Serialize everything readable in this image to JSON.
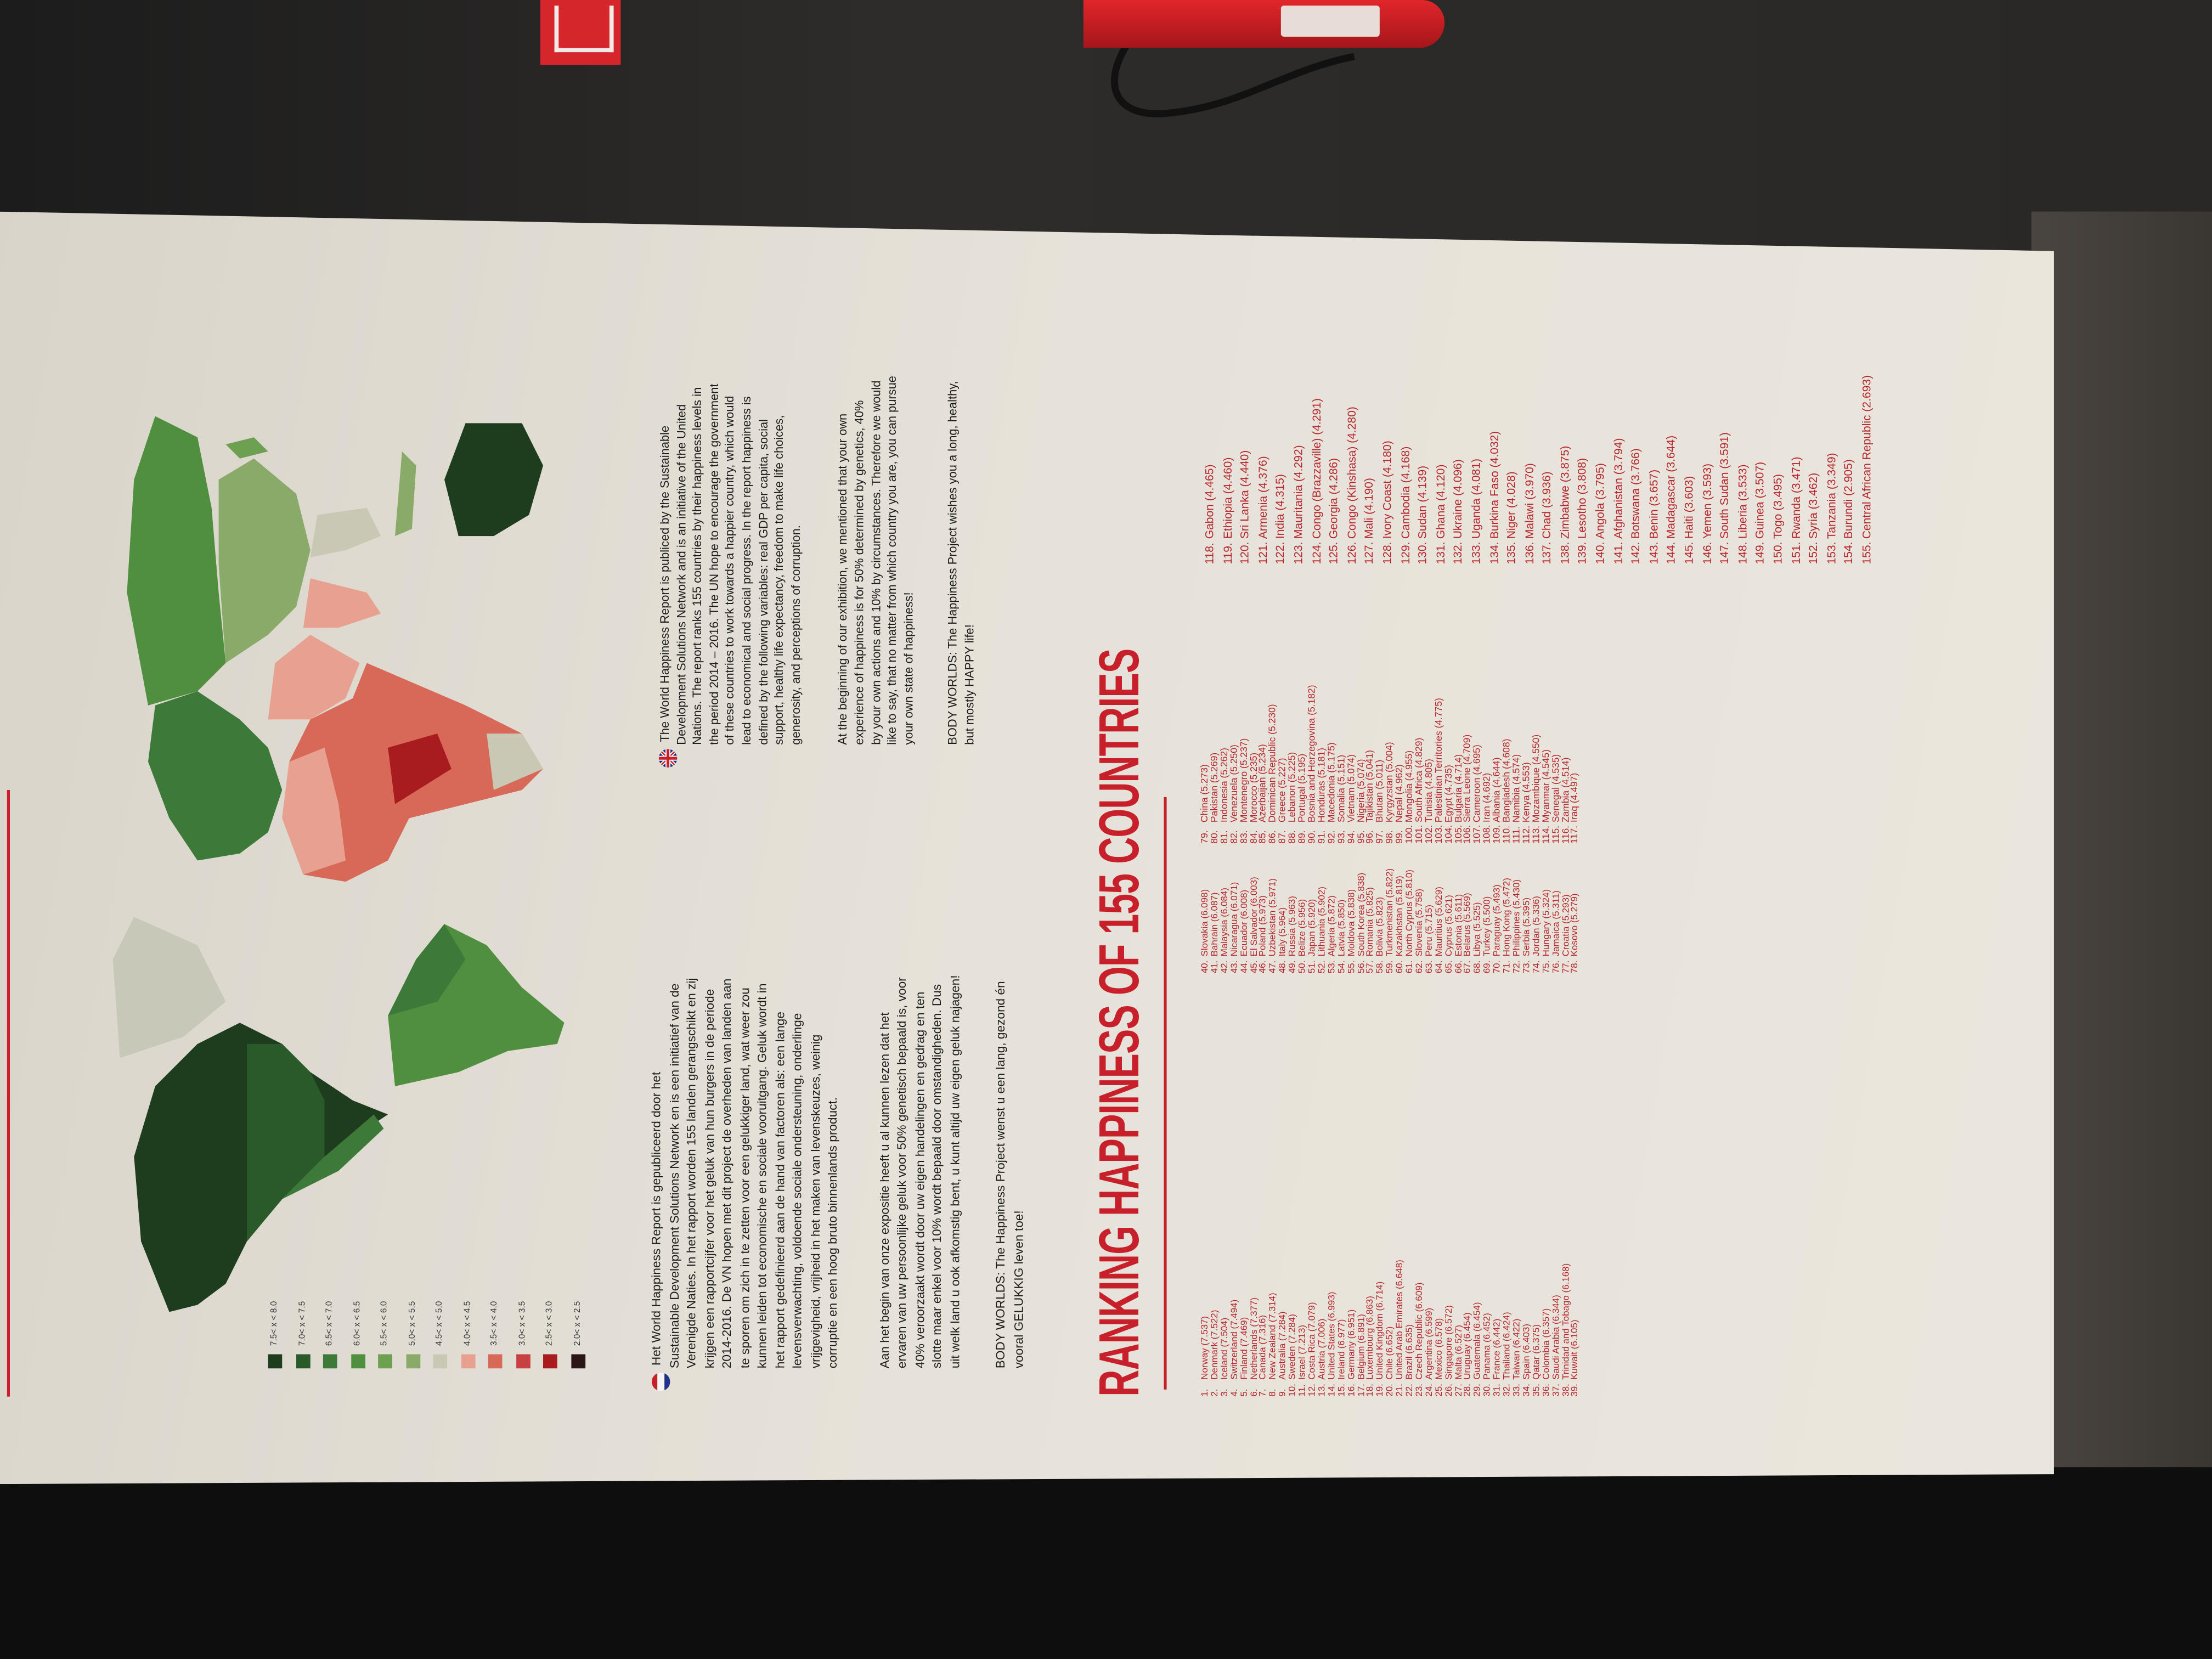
{
  "poster": {
    "title": "RANKING HAPPINESS OF 155 COUNTRIES",
    "accent_color": "#c8202a",
    "legend": [
      {
        "label": "7.5< x < 8.0",
        "color": "#1e3d1e"
      },
      {
        "label": "7.0< x < 7.5",
        "color": "#2a5a2a"
      },
      {
        "label": "6.5< x < 7.0",
        "color": "#3d7a3a"
      },
      {
        "label": "6.0< x < 6.5",
        "color": "#4f8f3f"
      },
      {
        "label": "5.5< x < 6.0",
        "color": "#6da050"
      },
      {
        "label": "5.0< x < 5.5",
        "color": "#8aaa6a"
      },
      {
        "label": "4.5< x < 5.0",
        "color": "#c8c8b4"
      },
      {
        "label": "4.0< x < 4.5",
        "color": "#e8a090"
      },
      {
        "label": "3.5< x < 4.0",
        "color": "#d86858"
      },
      {
        "label": "3.0< x < 3.5",
        "color": "#c84040"
      },
      {
        "label": "2.5< x < 3.0",
        "color": "#a81c20"
      },
      {
        "label": "2.0< x < 2.5",
        "color": "#2a1616"
      }
    ],
    "dutch": {
      "flag_icon": "netherlands-flag-icon",
      "paragraphs": [
        [
          "Het World Happiness Report is gepubliceerd door het",
          "Sustainable Development Solutions Network en is een initiatief van de",
          "Verenigde Naties. In het rapport worden 155 landen gerangschikt en zij",
          "krijgen een rapportcijfer voor het geluk van hun burgers in de periode",
          "2014-2016.  De VN hopen met dit project de overheden van landen aan",
          "te sporen om zich in te zetten voor een gelukkiger land, wat weer zou",
          "kunnen leiden tot economische en sociale vooruitgang. Geluk wordt in",
          "het rapport gedefinieerd aan de hand van factoren als: een lange",
          "levensverwachting, voldoende sociale ondersteuning, onderlinge",
          "vrijgevigheid, vrijheid in het maken van levenskeuzes, weinig",
          "corruptie en een hoog bruto binnenlands product."
        ],
        [
          "Aan het begin van onze expositie heeft u al kunnen lezen dat het",
          "ervaren van uw persoonlijke geluk voor 50% genetisch bepaald is, voor",
          "40% veroorzaakt wordt door uw eigen handelingen en gedrag en ten",
          "slotte maar enkel voor 10% wordt bepaald door omstandigheden. Dus",
          "uit welk land u ook afkomstig bent, u kunt altijd uw eigen geluk najagen!"
        ],
        [
          "BODY WORLDS: The Happiness Project wenst u een lang, gezond én",
          "vooral GELUKKIG leven toe!"
        ]
      ]
    },
    "english": {
      "flag_icon": "united-kingdom-flag-icon",
      "paragraphs": [
        [
          "The World Happiness Report is publiced by the Sustainable",
          "Development Solutions Network and is an initiative of the United",
          "Nations. The report ranks 155 countries by their happiness levels in",
          "the period 2014 – 2016. The UN hope to encourage the government",
          "of these countries to work towards a happier country, which would",
          "lead to economical and social progress. In the report happiness is",
          "defined by the following variables: real GDP per capita, social",
          "support, healthy life expectancy, freedom to make life choices,",
          "generosity, and perceptions of corruption."
        ],
        [
          "At the beginning of our exhibition, we mentioned that your own",
          "experience of happiness is for 50% determined by genetics,  40%",
          "by your own actions and 10% by circumstances. Therefore we would",
          "like to say, that no matter from which country you are, you can pursue",
          "your own state of happiness!"
        ],
        [
          "BODY WORLDS: The Happiness Project wishes you a long, healthy,",
          "but mostly HAPPY life!"
        ]
      ]
    },
    "ranking_columns": [
      [
        {
          "rank": "1.",
          "entry": "Norway (7.537)"
        },
        {
          "rank": "2.",
          "entry": "Denmark (7.522)"
        },
        {
          "rank": "3.",
          "entry": "Iceland (7.504)"
        },
        {
          "rank": "4.",
          "entry": "Switzerland (7.494)"
        },
        {
          "rank": "5.",
          "entry": "Finland (7.469)"
        },
        {
          "rank": "6.",
          "entry": "Netherlands (7.377)"
        },
        {
          "rank": "7.",
          "entry": "Canada (7.316)"
        },
        {
          "rank": "8.",
          "entry": "New Zealand (7.314)"
        },
        {
          "rank": "9.",
          "entry": "Australia (7.284)"
        },
        {
          "rank": "10.",
          "entry": "Sweden (7.284)"
        },
        {
          "rank": "11.",
          "entry": "Israel (7.213)"
        },
        {
          "rank": "12.",
          "entry": "Costa Rica (7.079)"
        },
        {
          "rank": "13.",
          "entry": "Austria (7.006)"
        },
        {
          "rank": "14.",
          "entry": "United States (6.993)"
        },
        {
          "rank": "15.",
          "entry": "Ireland (6.977)"
        },
        {
          "rank": "16.",
          "entry": "Germany (6.951)"
        },
        {
          "rank": "17.",
          "entry": "Belgium (6.891)"
        },
        {
          "rank": "18.",
          "entry": "Luxembourg (6.863)"
        },
        {
          "rank": "19.",
          "entry": "United Kingdom (6.714)"
        },
        {
          "rank": "20.",
          "entry": "Chile (6.652)"
        },
        {
          "rank": "21.",
          "entry": "United Arab Emirates (6.648)"
        },
        {
          "rank": "22.",
          "entry": "Brazil (6.635)"
        },
        {
          "rank": "23.",
          "entry": "Czech Republic (6.609)"
        },
        {
          "rank": "24.",
          "entry": "Argentina (6.599)"
        },
        {
          "rank": "25.",
          "entry": "Mexico (6.578)"
        },
        {
          "rank": "26.",
          "entry": "Singapore (6.572)"
        },
        {
          "rank": "27.",
          "entry": "Malta (6.527)"
        },
        {
          "rank": "28.",
          "entry": "Uruguay (6.454)"
        },
        {
          "rank": "29.",
          "entry": "Guatemala (6.454)"
        },
        {
          "rank": "30.",
          "entry": "Panama (6.452)"
        },
        {
          "rank": "31.",
          "entry": "France (6.442)"
        },
        {
          "rank": "32.",
          "entry": "Thailand (6.424)"
        },
        {
          "rank": "33.",
          "entry": "Taiwan (6.422)"
        },
        {
          "rank": "34.",
          "entry": "Spain (6.403)"
        },
        {
          "rank": "35.",
          "entry": "Qatar (6.375)"
        },
        {
          "rank": "36.",
          "entry": "Colombia (6.357)"
        },
        {
          "rank": "37.",
          "entry": "Saudi Arabia (6.344)"
        },
        {
          "rank": "38.",
          "entry": "Trinidad and Tobago (6.168)"
        },
        {
          "rank": "39.",
          "entry": "Kuwait (6.105)"
        }
      ],
      [
        {
          "rank": "40.",
          "entry": "Slovakia (6.098)"
        },
        {
          "rank": "41.",
          "entry": "Bahrain (6.087)"
        },
        {
          "rank": "42.",
          "entry": "Malaysia (6.084)"
        },
        {
          "rank": "43.",
          "entry": "Nicaragua (6.071)"
        },
        {
          "rank": "44.",
          "entry": "Ecuador (6.008)"
        },
        {
          "rank": "45.",
          "entry": "El Salvador (6.003)"
        },
        {
          "rank": "46.",
          "entry": "Poland (5.973)"
        },
        {
          "rank": "47.",
          "entry": "Uzbekistan (5.971)"
        },
        {
          "rank": "48.",
          "entry": "Italy (5.964)"
        },
        {
          "rank": "49.",
          "entry": "Russia (5.963)"
        },
        {
          "rank": "50.",
          "entry": "Belize (5.956)"
        },
        {
          "rank": "51.",
          "entry": "Japan (5.920)"
        },
        {
          "rank": "52.",
          "entry": "Lithuania (5.902)"
        },
        {
          "rank": "53.",
          "entry": "Algeria (5.872)"
        },
        {
          "rank": "54.",
          "entry": "Latvia (5.850)"
        },
        {
          "rank": "55.",
          "entry": "Moldova (5.838)"
        },
        {
          "rank": "56.",
          "entry": "South Korea (5.838)"
        },
        {
          "rank": "57.",
          "entry": "Romania (5.825)"
        },
        {
          "rank": "58.",
          "entry": "Bolivia (5.823)"
        },
        {
          "rank": "59.",
          "entry": "Turkmenistan (5.822)"
        },
        {
          "rank": "60.",
          "entry": "Kazakhstan (5.819)"
        },
        {
          "rank": "61.",
          "entry": "North Cyprus (5.810)"
        },
        {
          "rank": "62.",
          "entry": "Slovenia (5.758)"
        },
        {
          "rank": "63.",
          "entry": "Peru (5.715)"
        },
        {
          "rank": "64.",
          "entry": "Mauritius (5.629)"
        },
        {
          "rank": "65.",
          "entry": "Cyprus (5.621)"
        },
        {
          "rank": "66.",
          "entry": "Estonia (5.611)"
        },
        {
          "rank": "67.",
          "entry": "Belarus (5.569)"
        },
        {
          "rank": "68.",
          "entry": "Libya (5.525)"
        },
        {
          "rank": "69.",
          "entry": "Turkey (5.500)"
        },
        {
          "rank": "70.",
          "entry": "Paraguay (5.493)"
        },
        {
          "rank": "71.",
          "entry": "Hong Kong (5.472)"
        },
        {
          "rank": "72.",
          "entry": "Philippines (5.430)"
        },
        {
          "rank": "73.",
          "entry": "Serbia (5.395)"
        },
        {
          "rank": "74.",
          "entry": "Jordan (5.336)"
        },
        {
          "rank": "75.",
          "entry": "Hungary (5.324)"
        },
        {
          "rank": "76.",
          "entry": "Jamaica (5.311)"
        },
        {
          "rank": "77.",
          "entry": "Croatia (5.293)"
        },
        {
          "rank": "78.",
          "entry": "Kosovo (5.279)"
        }
      ],
      [
        {
          "rank": "79.",
          "entry": "China (5.273)"
        },
        {
          "rank": "80.",
          "entry": "Pakistan (5.269)"
        },
        {
          "rank": "81.",
          "entry": "Indonesia (5.262)"
        },
        {
          "rank": "82.",
          "entry": "Venezuela (5.250)"
        },
        {
          "rank": "83.",
          "entry": "Montenegro (5.237)"
        },
        {
          "rank": "84.",
          "entry": "Morocco (5.235)"
        },
        {
          "rank": "85.",
          "entry": "Azerbaijan (5.234)"
        },
        {
          "rank": "86.",
          "entry": "Dominican Republic (5.230)"
        },
        {
          "rank": "87.",
          "entry": "Greece (5.227)"
        },
        {
          "rank": "88.",
          "entry": "Lebanon (5.225)"
        },
        {
          "rank": "89.",
          "entry": "Portugal (5.195)"
        },
        {
          "rank": "90.",
          "entry": "Bosnia and Herzegovina (5.182)"
        },
        {
          "rank": "91.",
          "entry": "Honduras (5.181)"
        },
        {
          "rank": "92.",
          "entry": "Macedonia (5.175)"
        },
        {
          "rank": "93.",
          "entry": "Somalia (5.151)"
        },
        {
          "rank": "94.",
          "entry": "Vietnam (5.074)"
        },
        {
          "rank": "95.",
          "entry": "Nigeria (5.074)"
        },
        {
          "rank": "96.",
          "entry": "Tajikistan (5.041)"
        },
        {
          "rank": "97.",
          "entry": "Bhutan (5.011)"
        },
        {
          "rank": "98.",
          "entry": "Kyrgyzstan (5.004)"
        },
        {
          "rank": "99.",
          "entry": "Nepal (4.962)"
        },
        {
          "rank": "100.",
          "entry": "Mongolia (4.955)"
        },
        {
          "rank": "101.",
          "entry": "South Africa (4.829)"
        },
        {
          "rank": "102.",
          "entry": "Tunisia (4.805)"
        },
        {
          "rank": "103.",
          "entry": "Palestinian Territories (4.775)"
        },
        {
          "rank": "104.",
          "entry": "Egypt (4.735)"
        },
        {
          "rank": "105.",
          "entry": "Bulgaria (4.714)"
        },
        {
          "rank": "106.",
          "entry": "Sierra Leone (4.709)"
        },
        {
          "rank": "107.",
          "entry": "Cameroon (4.695)"
        },
        {
          "rank": "108.",
          "entry": "Iran (4.692)"
        },
        {
          "rank": "109.",
          "entry": "Albania (4.644)"
        },
        {
          "rank": "110.",
          "entry": "Bangladesh (4.608)"
        },
        {
          "rank": "111.",
          "entry": "Namibia (4.574)"
        },
        {
          "rank": "112.",
          "entry": "Kenya (4.553)"
        },
        {
          "rank": "113.",
          "entry": "Mozambique (4.550)"
        },
        {
          "rank": "114.",
          "entry": "Myanmar (4.545)"
        },
        {
          "rank": "115.",
          "entry": "Senegal (4.535)"
        },
        {
          "rank": "116.",
          "entry": "Zambia (4.514)"
        },
        {
          "rank": "117.",
          "entry": "Iraq (4.497)"
        }
      ],
      [
        {
          "rank": "118.",
          "entry": "Gabon (4.465)"
        },
        {
          "rank": "119.",
          "entry": "Ethiopia (4.460)"
        },
        {
          "rank": "120.",
          "entry": "Sri Lanka (4.440)"
        },
        {
          "rank": "121.",
          "entry": "Armenia (4.376)"
        },
        {
          "rank": "122.",
          "entry": "India (4.315)"
        },
        {
          "rank": "123.",
          "entry": "Mauritania (4.292)"
        },
        {
          "rank": "124.",
          "entry": "Congo (Brazzaville) (4.291)"
        },
        {
          "rank": "125.",
          "entry": "Georgia (4.286)"
        },
        {
          "rank": "126.",
          "entry": "Congo (Kinshasa) (4.280)"
        },
        {
          "rank": "127.",
          "entry": "Mali (4.190)"
        },
        {
          "rank": "128.",
          "entry": "Ivory Coast (4.180)"
        },
        {
          "rank": "129.",
          "entry": "Cambodia (4.168)"
        },
        {
          "rank": "130.",
          "entry": "Sudan (4.139)"
        },
        {
          "rank": "131.",
          "entry": "Ghana (4.120)"
        },
        {
          "rank": "132.",
          "entry": "Ukraine (4.096)"
        },
        {
          "rank": "133.",
          "entry": "Uganda (4.081)"
        },
        {
          "rank": "134.",
          "entry": "Burkina Faso (4.032)"
        },
        {
          "rank": "135.",
          "entry": "Niger (4.028)"
        },
        {
          "rank": "136.",
          "entry": "Malawi (3.970)"
        },
        {
          "rank": "137.",
          "entry": "Chad (3.936)"
        },
        {
          "rank": "138.",
          "entry": "Zimbabwe (3.875)"
        },
        {
          "rank": "139.",
          "entry": "Lesotho (3.808)"
        },
        {
          "rank": "140.",
          "entry": "Angola (3.795)"
        },
        {
          "rank": "141.",
          "entry": "Afghanistan (3.794)"
        },
        {
          "rank": "142.",
          "entry": "Botswana (3.766)"
        },
        {
          "rank": "143.",
          "entry": "Benin (3.657)"
        },
        {
          "rank": "144.",
          "entry": "Madagascar (3.644)"
        },
        {
          "rank": "145.",
          "entry": "Haiti (3.603)"
        },
        {
          "rank": "146.",
          "entry": "Yemen (3.593)"
        },
        {
          "rank": "147.",
          "entry": "South Sudan (3.591)"
        },
        {
          "rank": "148.",
          "entry": "Liberia (3.533)"
        },
        {
          "rank": "149.",
          "entry": "Guinea (3.507)"
        },
        {
          "rank": "150.",
          "entry": "Togo (3.495)"
        },
        {
          "rank": "151.",
          "entry": "Rwanda (3.471)"
        },
        {
          "rank": "152.",
          "entry": "Syria (3.462)"
        },
        {
          "rank": "153.",
          "entry": "Tanzania (3.349)"
        },
        {
          "rank": "154.",
          "entry": "Burundi (2.905)"
        },
        {
          "rank": "155.",
          "entry": "Central African Republic (2.693)"
        }
      ]
    ]
  },
  "scene": {
    "fire_sign_icon": "fire-extinguisher-sign-icon",
    "extinguisher_color": "#d4262b"
  }
}
